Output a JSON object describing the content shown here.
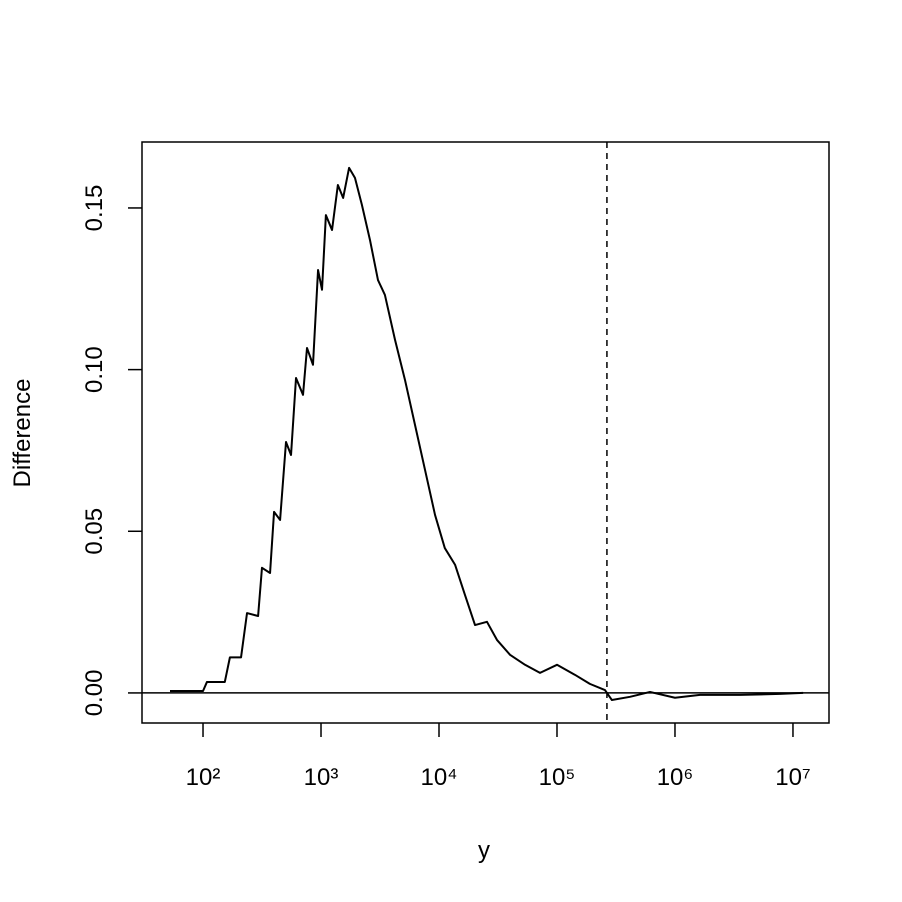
{
  "chart_data": {
    "type": "line",
    "x_label": "y",
    "y_label": "Difference",
    "xscale": "log",
    "x": [
      52.5,
      100,
      108,
      153,
      169,
      210,
      236,
      293,
      316,
      370,
      400,
      450,
      505,
      557,
      614,
      704,
      761,
      855,
      944,
      1020,
      1100,
      1240,
      1390,
      1540,
      1730,
      1940,
      2220,
      2600,
      3040,
      3480,
      4240,
      5150,
      6260,
      7610,
      9250,
      11200,
      13700,
      16600,
      20200,
      25500,
      31000,
      40000,
      53600,
      71800,
      100000,
      142000,
      190000,
      255000,
      292000,
      416000,
      614000,
      1000000,
      1630000,
      3560000,
      7760000,
      12200000
    ],
    "series": [
      {
        "color": "#000000",
        "values": [
          0.0006,
          0.0006,
          0.0034,
          0.0034,
          0.011,
          0.011,
          0.0247,
          0.0238,
          0.0387,
          0.0371,
          0.056,
          0.0535,
          0.0776,
          0.0736,
          0.0974,
          0.0922,
          0.1067,
          0.1015,
          0.1308,
          0.1247,
          0.1478,
          0.1432,
          0.1571,
          0.1531,
          0.1624,
          0.1593,
          0.151,
          0.1401,
          0.1277,
          0.1231,
          0.1092,
          0.0968,
          0.0829,
          0.069,
          0.0551,
          0.0448,
          0.0396,
          0.0303,
          0.021,
          0.022,
          0.0164,
          0.0118,
          0.0087,
          0.0062,
          0.0087,
          0.0056,
          0.0028,
          0.0009,
          -0.0022,
          -0.0012,
          0.0003,
          -0.0015,
          -0.0006,
          -0.0006,
          -0.0003,
          0
        ]
      }
    ],
    "xlim": [
      30.4,
      20200000
    ],
    "xticks": [
      {
        "value": 100,
        "label": "10²"
      },
      {
        "value": 1000,
        "label": "10³"
      },
      {
        "value": 10000,
        "label": "10⁴"
      },
      {
        "value": 100000,
        "label": "10⁵"
      },
      {
        "value": 1000000,
        "label": "10⁶"
      },
      {
        "value": 10000000,
        "label": "10⁷"
      }
    ],
    "ylim": [
      -0.0093,
      0.1704
    ],
    "yticks": [
      {
        "value": 0,
        "label": "0.00"
      },
      0.05,
      {
        "value": 0.1,
        "label": "0.10"
      },
      0.15
    ],
    "reference_lines": {
      "x": 265000,
      "y": 0
    }
  }
}
